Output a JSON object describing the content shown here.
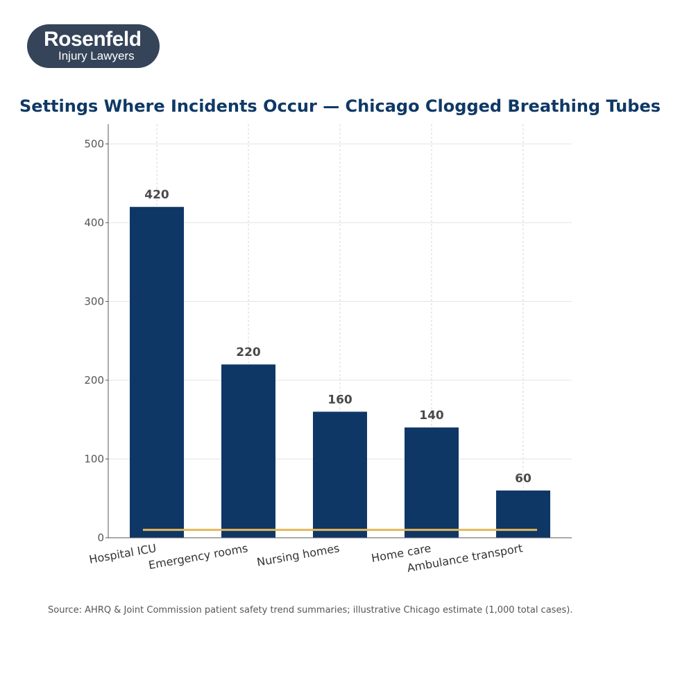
{
  "logo": {
    "name": "Rosenfeld",
    "tagline": "Injury Lawyers"
  },
  "colors": {
    "bar": "#0f3766",
    "reference_line": "#e2b85a",
    "title": "#0f3966",
    "logo_bg": "#364459"
  },
  "chart_data": {
    "type": "bar",
    "title": "Settings Where Incidents Occur — Chicago Clogged Breathing Tubes",
    "categories": [
      "Hospital ICU",
      "Emergency rooms",
      "Nursing homes",
      "Home care",
      "Ambulance transport"
    ],
    "values": [
      420,
      220,
      160,
      140,
      60
    ],
    "data_labels": [
      "420",
      "220",
      "160",
      "140",
      "60"
    ],
    "reference_line": {
      "value": 10,
      "style": "solid"
    },
    "xlabel": "",
    "ylabel": "",
    "ylim": [
      0,
      525
    ],
    "yticks": [
      0,
      100,
      200,
      300,
      400,
      500
    ],
    "grid": true
  },
  "source": "Source: AHRQ & Joint Commission patient safety trend summaries; illustrative Chicago estimate (1,000 total cases)."
}
